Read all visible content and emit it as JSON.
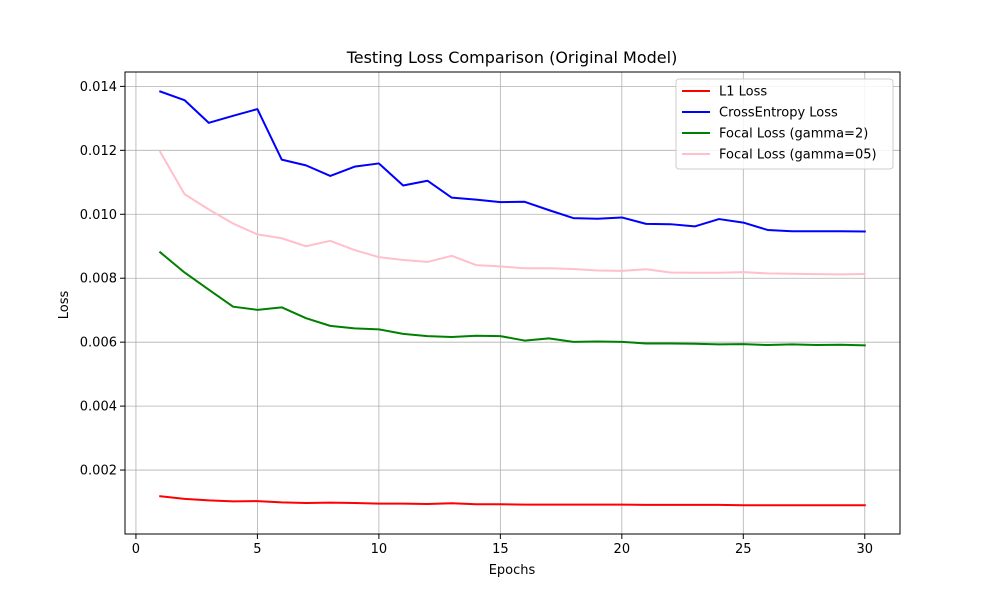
{
  "chart_data": {
    "type": "line",
    "title": "Testing Loss Comparison (Original Model)",
    "xlabel": "Epochs",
    "ylabel": "Loss",
    "xlim": [
      -0.45,
      31.45
    ],
    "ylim": [
      0.0,
      0.01445
    ],
    "xticks": [
      0,
      5,
      10,
      15,
      20,
      25,
      30
    ],
    "yticks": [
      0.002,
      0.004,
      0.006,
      0.008,
      0.01,
      0.012,
      0.014
    ],
    "ytick_labels": [
      "0.002",
      "0.004",
      "0.006",
      "0.008",
      "0.010",
      "0.012",
      "0.014"
    ],
    "xtick_labels": [
      "0",
      "5",
      "10",
      "15",
      "20",
      "25",
      "30"
    ],
    "grid": true,
    "legend_position": "top-right",
    "x": [
      1,
      2,
      3,
      4,
      5,
      6,
      7,
      8,
      9,
      10,
      11,
      12,
      13,
      14,
      15,
      16,
      17,
      18,
      19,
      20,
      21,
      22,
      23,
      24,
      25,
      26,
      27,
      28,
      29,
      30
    ],
    "series": [
      {
        "name": "L1 Loss",
        "color": "#ff0000",
        "values": [
          0.00118,
          0.0011,
          0.00105,
          0.00102,
          0.00103,
          0.00099,
          0.00097,
          0.00098,
          0.00097,
          0.00095,
          0.00095,
          0.00094,
          0.00096,
          0.00093,
          0.00093,
          0.00092,
          0.00092,
          0.00092,
          0.00092,
          0.00092,
          0.00091,
          0.00091,
          0.00091,
          0.00091,
          0.0009,
          0.0009,
          0.0009,
          0.0009,
          0.0009,
          0.0009
        ]
      },
      {
        "name": "CrossEntropy Loss",
        "color": "#0000ff",
        "values": [
          0.01384,
          0.01357,
          0.01286,
          0.01308,
          0.01329,
          0.01171,
          0.01153,
          0.0112,
          0.01149,
          0.01159,
          0.0109,
          0.01105,
          0.01052,
          0.01046,
          0.01038,
          0.01039,
          0.01013,
          0.00988,
          0.00986,
          0.0099,
          0.0097,
          0.00969,
          0.00962,
          0.00985,
          0.00974,
          0.00951,
          0.00947,
          0.00947,
          0.00947,
          0.00946
        ]
      },
      {
        "name": "Focal Loss (gamma=2)",
        "color": "#008000",
        "values": [
          0.00881,
          0.00818,
          0.00764,
          0.00711,
          0.00701,
          0.00709,
          0.00675,
          0.00651,
          0.00643,
          0.0064,
          0.00626,
          0.00619,
          0.00616,
          0.0062,
          0.00619,
          0.00605,
          0.00612,
          0.00601,
          0.00602,
          0.00601,
          0.00596,
          0.00596,
          0.00595,
          0.00593,
          0.00594,
          0.00591,
          0.00593,
          0.00591,
          0.00592,
          0.0059
        ]
      },
      {
        "name": "Focal Loss (gamma=05)",
        "color": "#ffc0cb",
        "values": [
          0.01195,
          0.01063,
          0.01015,
          0.00971,
          0.00937,
          0.00925,
          0.009,
          0.00917,
          0.00888,
          0.00866,
          0.00857,
          0.00851,
          0.0087,
          0.00841,
          0.00837,
          0.00831,
          0.00831,
          0.00829,
          0.00824,
          0.00823,
          0.00828,
          0.00818,
          0.00817,
          0.00817,
          0.00819,
          0.00815,
          0.00814,
          0.00813,
          0.00812,
          0.00813
        ]
      }
    ]
  }
}
